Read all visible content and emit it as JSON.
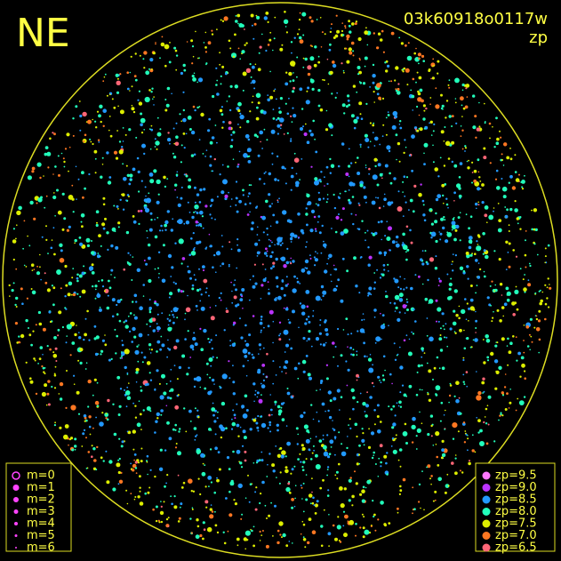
{
  "header": {
    "label": "NE",
    "frame": "03k60918o0117w",
    "quantity": "zp"
  },
  "magnitude_legend": [
    "m=0",
    "m=1",
    "m=2",
    "m=3",
    "m=4",
    "m=5",
    "m=6"
  ],
  "zp_legend": [
    {
      "label": "zp=9.5",
      "color": "#ff77ff"
    },
    {
      "label": "zp=9.0",
      "color": "#bb33ff"
    },
    {
      "label": "zp=8.5",
      "color": "#2299ff"
    },
    {
      "label": "zp=8.0",
      "color": "#22ffbb"
    },
    {
      "label": "zp=7.5",
      "color": "#ddee00"
    },
    {
      "label": "zp=7.0",
      "color": "#ff7722"
    },
    {
      "label": "zp=6.5",
      "color": "#ff6677"
    }
  ]
}
